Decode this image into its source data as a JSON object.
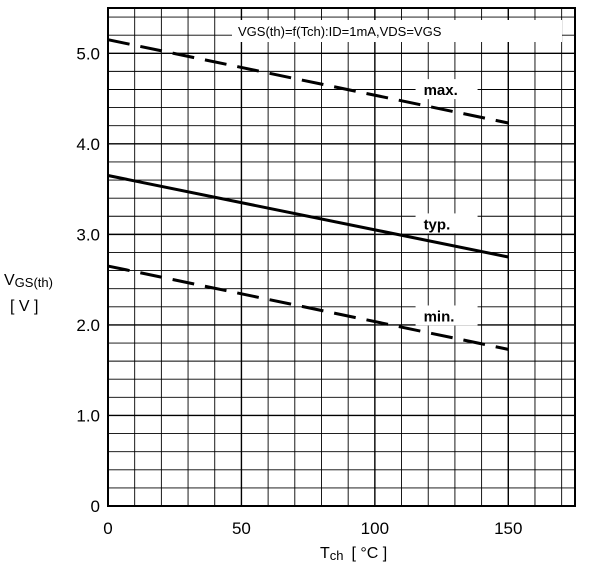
{
  "chart_data": {
    "type": "line",
    "condition_text": "VGS(th)=f(Tch):ID=1mA,VDS=VGS",
    "xlabel": {
      "main": "T",
      "sub": "ch",
      "unit": "[ °C ]"
    },
    "ylabel": {
      "main": "V",
      "sub": "GS(th)",
      "unit": "[ V ]"
    },
    "xlim": [
      0,
      175
    ],
    "ylim": [
      0,
      5.5
    ],
    "x_ticks": [
      "0",
      "50",
      "100",
      "150"
    ],
    "x_tick_values": [
      0,
      50,
      100,
      150
    ],
    "y_ticks": [
      "0",
      "1.0",
      "2.0",
      "3.0",
      "4.0",
      "5.0"
    ],
    "y_tick_values": [
      0,
      1,
      2,
      3,
      4,
      5
    ],
    "grid": true,
    "series": [
      {
        "name": "max.",
        "style": "dashed",
        "x": [
          0,
          150
        ],
        "y": [
          5.15,
          4.23
        ]
      },
      {
        "name": "typ.",
        "style": "solid",
        "x": [
          0,
          150
        ],
        "y": [
          3.65,
          2.75
        ]
      },
      {
        "name": "min.",
        "style": "dashed",
        "x": [
          0,
          150
        ],
        "y": [
          2.65,
          1.73
        ]
      }
    ]
  }
}
